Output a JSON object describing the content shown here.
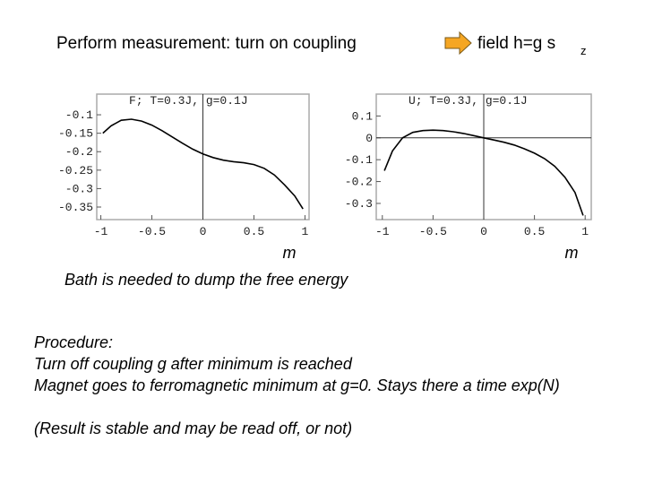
{
  "title": {
    "before": "Perform measurement: turn on coupling",
    "after": "field  h=g s",
    "subscript": "z"
  },
  "chart_data": [
    {
      "type": "line",
      "title": "F; T=0.3J, g=0.1J",
      "x_label": "m",
      "x": [
        -0.98,
        -0.9,
        -0.8,
        -0.7,
        -0.6,
        -0.5,
        -0.4,
        -0.3,
        -0.2,
        -0.1,
        0,
        0.1,
        0.2,
        0.3,
        0.4,
        0.5,
        0.6,
        0.7,
        0.8,
        0.9,
        0.98
      ],
      "values": [
        -0.15,
        -0.13,
        -0.115,
        -0.112,
        -0.117,
        -0.128,
        -0.143,
        -0.16,
        -0.177,
        -0.193,
        -0.206,
        -0.216,
        -0.223,
        -0.227,
        -0.23,
        -0.235,
        -0.245,
        -0.263,
        -0.29,
        -0.32,
        -0.355
      ],
      "color": "#000000",
      "xlim": [
        -1.04,
        1.04
      ],
      "xticks": [
        -1,
        -0.5,
        0,
        0.5,
        1
      ],
      "ylim": [
        -0.384,
        -0.044
      ],
      "yticks": [
        -0.1,
        -0.15,
        -0.2,
        -0.25,
        -0.3,
        -0.35
      ]
    },
    {
      "type": "line",
      "title": "U; T=0.3J, g=0.1J",
      "x_label": "m",
      "x": [
        -0.98,
        -0.9,
        -0.8,
        -0.7,
        -0.6,
        -0.5,
        -0.4,
        -0.3,
        -0.2,
        -0.1,
        0,
        0.1,
        0.2,
        0.3,
        0.4,
        0.5,
        0.6,
        0.7,
        0.8,
        0.9,
        0.98
      ],
      "values": [
        -0.15,
        -0.06,
        0.0,
        0.025,
        0.033,
        0.035,
        0.033,
        0.028,
        0.02,
        0.01,
        0,
        -0.01,
        -0.02,
        -0.033,
        -0.05,
        -0.07,
        -0.095,
        -0.13,
        -0.18,
        -0.25,
        -0.355
      ],
      "color": "#000000",
      "xlim": [
        -1.06,
        1.06
      ],
      "xticks": [
        -1,
        -0.5,
        0,
        0.5,
        1
      ],
      "ylim": [
        -0.374,
        0.2
      ],
      "yticks": [
        0.1,
        0,
        -0.1,
        -0.2,
        -0.3
      ]
    }
  ],
  "caption": "Bath is needed to dump the free energy",
  "procedure": [
    "Procedure:",
    "Turn off coupling g after minimum is reached",
    "Magnet goes to ferromagnetic minimum at g=0. Stays there a time exp(N)"
  ],
  "note": "(Result is stable and may be read off, or not)"
}
